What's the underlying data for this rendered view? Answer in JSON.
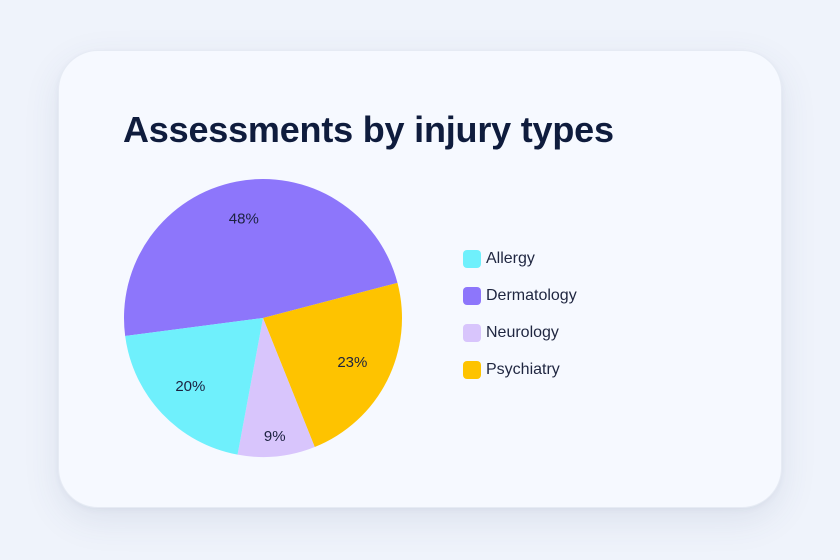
{
  "chart_data": {
    "type": "pie",
    "title": "Assessments by injury types",
    "categories": [
      "Allergy",
      "Dermatology",
      "Neurology",
      "Psychiatry"
    ],
    "values": [
      20,
      48,
      9,
      23
    ],
    "labels": [
      "20%",
      "48%",
      "9%",
      "23%"
    ],
    "colors": [
      "#6ff0fc",
      "#8d76fb",
      "#d8c5fc",
      "#fec300"
    ],
    "legend_position": "right"
  }
}
